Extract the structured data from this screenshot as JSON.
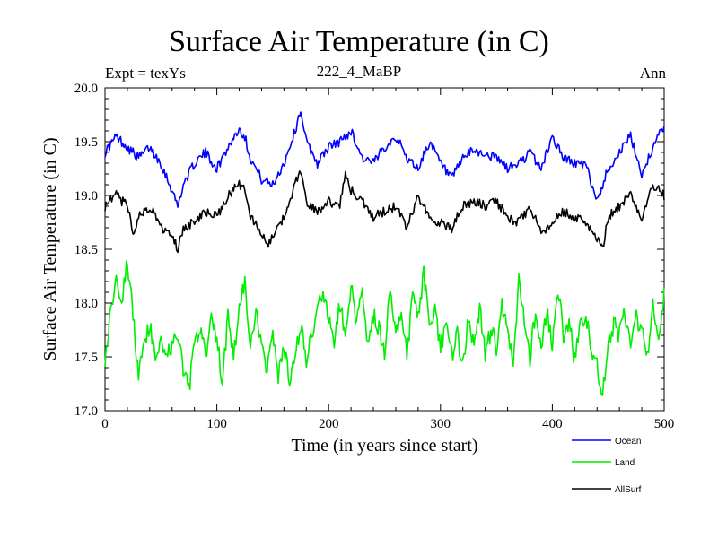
{
  "chart_data": {
    "type": "line",
    "title": "Surface Air Temperature (in C)",
    "subtitle": "222_4_MaBP",
    "expt_label": "Expt = texYs",
    "season_label": "Ann",
    "xlabel": "Time (in years since start)",
    "ylabel": "Surface Air Temperature (in C)",
    "xlim": [
      0,
      500
    ],
    "ylim": [
      17.0,
      20.0
    ],
    "xticks": [
      0,
      100,
      200,
      300,
      400,
      500
    ],
    "yticks": [
      "17.0",
      "17.5",
      "18.0",
      "18.5",
      "19.0",
      "19.5",
      "20.0"
    ],
    "grid": false,
    "legend_position": "bottom-right",
    "series": [
      {
        "name": "Ocean",
        "color": "#0000ff",
        "x": [
          0,
          10,
          20,
          30,
          40,
          50,
          60,
          65,
          70,
          80,
          90,
          100,
          110,
          120,
          125,
          130,
          140,
          150,
          160,
          170,
          175,
          180,
          190,
          200,
          210,
          220,
          230,
          240,
          250,
          260,
          270,
          280,
          290,
          300,
          310,
          320,
          330,
          340,
          350,
          360,
          370,
          380,
          390,
          400,
          410,
          420,
          430,
          440,
          450,
          460,
          470,
          480,
          490,
          500
        ],
        "values": [
          19.4,
          19.55,
          19.45,
          19.35,
          19.45,
          19.3,
          19.05,
          18.9,
          19.1,
          19.3,
          19.4,
          19.25,
          19.45,
          19.62,
          19.55,
          19.35,
          19.15,
          19.1,
          19.3,
          19.6,
          19.8,
          19.5,
          19.3,
          19.45,
          19.5,
          19.6,
          19.35,
          19.3,
          19.45,
          19.55,
          19.35,
          19.25,
          19.5,
          19.3,
          19.15,
          19.35,
          19.42,
          19.38,
          19.35,
          19.25,
          19.3,
          19.4,
          19.25,
          19.55,
          19.35,
          19.3,
          19.28,
          18.95,
          19.25,
          19.4,
          19.55,
          19.2,
          19.45,
          19.65
        ]
      },
      {
        "name": "Land",
        "color": "#00ee00",
        "x": [
          0,
          5,
          10,
          15,
          20,
          25,
          30,
          35,
          40,
          45,
          50,
          55,
          60,
          65,
          70,
          75,
          80,
          85,
          90,
          95,
          100,
          105,
          110,
          115,
          120,
          125,
          130,
          135,
          140,
          145,
          150,
          155,
          160,
          165,
          170,
          175,
          180,
          185,
          190,
          195,
          200,
          205,
          210,
          215,
          220,
          225,
          230,
          235,
          240,
          245,
          250,
          255,
          260,
          265,
          270,
          275,
          280,
          285,
          290,
          295,
          300,
          305,
          310,
          315,
          320,
          325,
          330,
          335,
          340,
          345,
          350,
          355,
          360,
          365,
          370,
          375,
          380,
          385,
          390,
          395,
          400,
          405,
          410,
          415,
          420,
          425,
          430,
          435,
          440,
          445,
          450,
          455,
          460,
          465,
          470,
          475,
          480,
          485,
          490,
          495,
          500
        ],
        "values": [
          17.5,
          17.9,
          18.3,
          18.0,
          18.4,
          17.9,
          17.3,
          17.6,
          17.8,
          17.45,
          17.7,
          17.5,
          17.6,
          17.7,
          17.4,
          17.2,
          17.6,
          17.75,
          17.5,
          17.85,
          17.7,
          17.25,
          17.9,
          17.5,
          17.95,
          18.2,
          17.55,
          17.9,
          17.6,
          17.4,
          17.7,
          17.3,
          17.6,
          17.25,
          17.5,
          17.8,
          17.45,
          17.7,
          17.95,
          18.1,
          17.85,
          17.65,
          18.0,
          17.7,
          18.15,
          17.8,
          18.2,
          17.6,
          17.9,
          17.75,
          17.55,
          18.15,
          17.7,
          17.95,
          17.5,
          18.1,
          17.85,
          18.3,
          17.75,
          17.9,
          17.6,
          17.8,
          17.5,
          17.7,
          17.4,
          17.85,
          17.6,
          17.95,
          17.5,
          17.75,
          17.6,
          18.0,
          17.7,
          17.45,
          18.2,
          17.8,
          17.5,
          17.9,
          17.6,
          17.95,
          17.55,
          18.15,
          17.7,
          17.85,
          17.45,
          17.8,
          17.9,
          17.6,
          17.4,
          17.15,
          17.6,
          17.8,
          17.7,
          17.9,
          17.6,
          17.85,
          17.75,
          17.5,
          17.95,
          17.7,
          18.1
        ]
      },
      {
        "name": "AllSurf",
        "color": "#000000",
        "x": [
          0,
          10,
          20,
          25,
          30,
          40,
          50,
          60,
          65,
          70,
          80,
          90,
          100,
          110,
          120,
          125,
          130,
          140,
          145,
          150,
          160,
          170,
          175,
          180,
          190,
          200,
          210,
          215,
          220,
          230,
          240,
          250,
          260,
          270,
          280,
          290,
          300,
          310,
          320,
          330,
          340,
          350,
          360,
          370,
          380,
          390,
          400,
          410,
          420,
          430,
          440,
          445,
          450,
          460,
          470,
          480,
          490,
          500
        ],
        "values": [
          18.9,
          19.0,
          18.9,
          18.65,
          18.8,
          18.9,
          18.7,
          18.65,
          18.5,
          18.7,
          18.75,
          18.85,
          18.8,
          19.0,
          19.1,
          19.05,
          18.8,
          18.65,
          18.55,
          18.6,
          18.8,
          19.1,
          19.25,
          18.95,
          18.85,
          18.95,
          18.9,
          19.2,
          19.05,
          18.95,
          18.8,
          18.85,
          18.9,
          18.7,
          19.0,
          18.8,
          18.75,
          18.7,
          18.9,
          18.95,
          18.9,
          18.95,
          18.8,
          18.75,
          18.9,
          18.65,
          18.75,
          18.85,
          18.8,
          18.75,
          18.6,
          18.5,
          18.8,
          18.9,
          19.0,
          18.8,
          19.1,
          19.0
        ]
      }
    ]
  }
}
